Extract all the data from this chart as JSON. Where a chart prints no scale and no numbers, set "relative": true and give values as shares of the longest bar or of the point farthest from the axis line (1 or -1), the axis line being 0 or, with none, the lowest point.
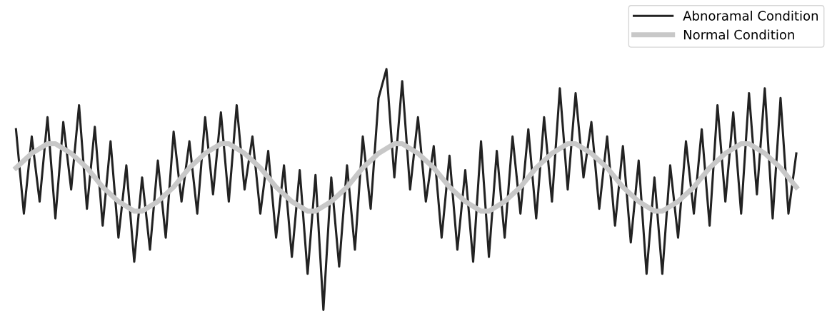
{
  "chart_data": {
    "type": "line",
    "relative": true,
    "legend": "top right",
    "marker": "none",
    "line_style": "solid",
    "categories": [
      null,
      null,
      null,
      null,
      null,
      null,
      null,
      null,
      null,
      null,
      null,
      null,
      null,
      null,
      null,
      null,
      null,
      null,
      null,
      null,
      null,
      null,
      null,
      null,
      null,
      null,
      null,
      null,
      null,
      null,
      null,
      null,
      null,
      null,
      null,
      null,
      null,
      null,
      null,
      null,
      null,
      null,
      null,
      null,
      null,
      null,
      null,
      null,
      null,
      null,
      null,
      null,
      null,
      null,
      null,
      null,
      null,
      null,
      null,
      null,
      null,
      null,
      null,
      null,
      null,
      null,
      null,
      null,
      null,
      null,
      null,
      null,
      null,
      null,
      null,
      null,
      null,
      null,
      null,
      null,
      null,
      null,
      null,
      null,
      null,
      null,
      null,
      null,
      null,
      null,
      null,
      null,
      null,
      null,
      null,
      null,
      null,
      null,
      null,
      null
    ],
    "series": [
      {
        "name": "Abnoramal Condition",
        "color": "#222222",
        "values": [
          0.75,
          0.4,
          0.72,
          0.45,
          0.8,
          0.38,
          0.78,
          0.5,
          0.85,
          0.42,
          0.76,
          0.35,
          0.7,
          0.3,
          0.6,
          0.2,
          0.55,
          0.25,
          0.62,
          0.3,
          0.74,
          0.45,
          0.7,
          0.4,
          0.8,
          0.48,
          0.82,
          0.45,
          0.85,
          0.5,
          0.72,
          0.4,
          0.66,
          0.3,
          0.6,
          0.22,
          0.58,
          0.15,
          0.56,
          0.0,
          0.55,
          0.18,
          0.6,
          0.25,
          0.72,
          0.42,
          0.88,
          1.0,
          0.55,
          0.95,
          0.5,
          0.8,
          0.45,
          0.68,
          0.3,
          0.64,
          0.25,
          0.58,
          0.2,
          0.7,
          0.22,
          0.66,
          0.3,
          0.72,
          0.4,
          0.75,
          0.38,
          0.8,
          0.45,
          0.92,
          0.5,
          0.9,
          0.55,
          0.78,
          0.42,
          0.72,
          0.35,
          0.68,
          0.28,
          0.62,
          0.15,
          0.55,
          0.15,
          0.6,
          0.3,
          0.7,
          0.4,
          0.75,
          0.35,
          0.85,
          0.45,
          0.82,
          0.4,
          0.9,
          0.48,
          0.92,
          0.38,
          0.88,
          0.4,
          0.65
        ]
      },
      {
        "name": "Normal Condition",
        "color": "#c8c8c8",
        "values": [
          0.59,
          0.62,
          0.65,
          0.67,
          0.69,
          0.69,
          0.67,
          0.65,
          0.62,
          0.59,
          0.55,
          0.51,
          0.48,
          0.45,
          0.43,
          0.41,
          0.41,
          0.43,
          0.45,
          0.48,
          0.51,
          0.55,
          0.59,
          0.62,
          0.65,
          0.67,
          0.69,
          0.69,
          0.67,
          0.65,
          0.62,
          0.59,
          0.55,
          0.51,
          0.48,
          0.45,
          0.43,
          0.41,
          0.41,
          0.43,
          0.45,
          0.48,
          0.51,
          0.55,
          0.59,
          0.62,
          0.65,
          0.67,
          0.69,
          0.69,
          0.67,
          0.65,
          0.62,
          0.59,
          0.55,
          0.51,
          0.48,
          0.45,
          0.43,
          0.41,
          0.41,
          0.43,
          0.45,
          0.48,
          0.51,
          0.55,
          0.59,
          0.62,
          0.65,
          0.67,
          0.69,
          0.69,
          0.67,
          0.65,
          0.62,
          0.59,
          0.55,
          0.51,
          0.48,
          0.45,
          0.43,
          0.41,
          0.41,
          0.43,
          0.45,
          0.48,
          0.51,
          0.55,
          0.59,
          0.62,
          0.65,
          0.67,
          0.69,
          0.69,
          0.67,
          0.65,
          0.62,
          0.59,
          0.55,
          0.51
        ]
      }
    ]
  }
}
